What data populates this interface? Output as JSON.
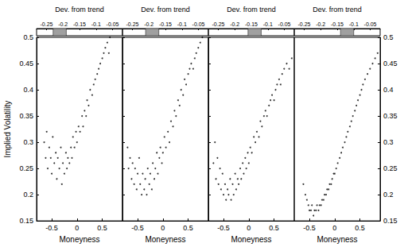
{
  "chart_data": [
    {
      "type": "scatter",
      "color": "#000000",
      "marker": "circle",
      "xlabel": "Moneyness",
      "ylabel": "Implied Volatility",
      "x2label": "Dev. from trend",
      "xlim": [
        -0.8,
        0.9
      ],
      "xticks": [
        -0.5,
        0,
        0.5
      ],
      "ylim": [
        0.15,
        0.5
      ],
      "yticks": [
        0.15,
        0.2,
        0.25,
        0.3,
        0.35,
        0.4,
        0.45,
        0.5
      ],
      "x2lim": [
        -0.28,
        -0.02
      ],
      "x2ticks": [
        -0.25,
        -0.2,
        -0.15,
        -0.1,
        -0.05
      ],
      "band": [
        -0.23,
        -0.19
      ],
      "x": [
        -0.65,
        -0.62,
        -0.6,
        -0.58,
        -0.55,
        -0.52,
        -0.5,
        -0.48,
        -0.45,
        -0.42,
        -0.4,
        -0.38,
        -0.35,
        -0.32,
        -0.3,
        -0.28,
        -0.25,
        -0.22,
        -0.2,
        -0.18,
        -0.15,
        -0.12,
        -0.1,
        -0.08,
        -0.05,
        -0.02,
        0,
        0.03,
        0.06,
        0.1,
        0.12,
        0.15,
        0.18,
        0.2,
        0.23,
        0.26,
        0.3,
        0.33,
        0.36,
        0.4,
        0.43,
        0.46,
        0.5,
        0.53,
        0.56,
        0.6,
        0.63,
        0.65
      ],
      "values": [
        0.3,
        0.27,
        0.32,
        0.25,
        0.29,
        0.27,
        0.24,
        0.31,
        0.26,
        0.28,
        0.23,
        0.27,
        0.25,
        0.29,
        0.22,
        0.26,
        0.24,
        0.28,
        0.25,
        0.27,
        0.26,
        0.29,
        0.27,
        0.31,
        0.29,
        0.32,
        0.3,
        0.33,
        0.32,
        0.35,
        0.33,
        0.36,
        0.35,
        0.38,
        0.37,
        0.4,
        0.39,
        0.41,
        0.42,
        0.43,
        0.44,
        0.45,
        0.46,
        0.47,
        0.48,
        0.49,
        0.47,
        0.5
      ]
    },
    {
      "type": "scatter",
      "color": "#000000",
      "marker": "circle",
      "tick_labels": "x",
      "xlabel": "Moneyness",
      "x2label": "Dev. from trend",
      "xlim": [
        -0.8,
        0.9
      ],
      "xticks": [
        -0.5,
        0,
        0.5
      ],
      "ylim": [
        0.15,
        0.5
      ],
      "yticks": [
        0.15,
        0.2,
        0.25,
        0.3,
        0.35,
        0.4,
        0.45,
        0.5
      ],
      "x2lim": [
        -0.28,
        -0.02
      ],
      "x2ticks": [
        -0.25,
        -0.2,
        -0.15,
        -0.1,
        -0.05
      ],
      "band": [
        -0.21,
        -0.17
      ],
      "x": [
        -0.7,
        -0.68,
        -0.65,
        -0.62,
        -0.6,
        -0.57,
        -0.55,
        -0.52,
        -0.5,
        -0.47,
        -0.45,
        -0.42,
        -0.4,
        -0.37,
        -0.35,
        -0.32,
        -0.3,
        -0.27,
        -0.25,
        -0.22,
        -0.2,
        -0.17,
        -0.15,
        -0.12,
        -0.1,
        -0.07,
        -0.05,
        -0.02,
        0,
        0.03,
        0.06,
        0.1,
        0.13,
        0.16,
        0.2,
        0.23,
        0.26,
        0.3,
        0.33,
        0.36,
        0.4,
        0.43,
        0.46,
        0.5,
        0.53,
        0.56,
        0.6,
        0.63,
        0.66,
        0.7,
        0.74,
        0.78
      ],
      "values": [
        0.29,
        0.25,
        0.27,
        0.23,
        0.26,
        0.22,
        0.25,
        0.21,
        0.24,
        0.27,
        0.22,
        0.2,
        0.24,
        0.21,
        0.23,
        0.2,
        0.25,
        0.22,
        0.24,
        0.21,
        0.26,
        0.23,
        0.25,
        0.28,
        0.24,
        0.27,
        0.29,
        0.26,
        0.28,
        0.31,
        0.29,
        0.32,
        0.3,
        0.34,
        0.33,
        0.36,
        0.35,
        0.38,
        0.37,
        0.4,
        0.39,
        0.42,
        0.41,
        0.43,
        0.44,
        0.45,
        0.44,
        0.46,
        0.47,
        0.48,
        0.49,
        0.5
      ]
    },
    {
      "type": "scatter",
      "color": "#000000",
      "marker": "circle",
      "tick_labels": "x",
      "xlabel": "Moneyness",
      "x2label": "Dev. from trend",
      "xlim": [
        -0.8,
        0.9
      ],
      "xticks": [
        -0.5,
        0,
        0.5
      ],
      "ylim": [
        0.15,
        0.5
      ],
      "yticks": [
        0.15,
        0.2,
        0.25,
        0.3,
        0.35,
        0.4,
        0.45,
        0.5
      ],
      "x2lim": [
        -0.28,
        -0.02
      ],
      "x2ticks": [
        -0.25,
        -0.2,
        -0.15,
        -0.1,
        -0.05
      ],
      "band": [
        -0.16,
        -0.12
      ],
      "x": [
        -0.7,
        -0.67,
        -0.65,
        -0.62,
        -0.6,
        -0.57,
        -0.55,
        -0.52,
        -0.5,
        -0.47,
        -0.45,
        -0.42,
        -0.4,
        -0.37,
        -0.35,
        -0.32,
        -0.3,
        -0.27,
        -0.25,
        -0.22,
        -0.2,
        -0.17,
        -0.15,
        -0.12,
        -0.1,
        -0.07,
        -0.05,
        -0.02,
        0,
        0.03,
        0.06,
        0.1,
        0.13,
        0.16,
        0.2,
        0.23,
        0.26,
        0.3,
        0.33,
        0.36,
        0.4,
        0.43,
        0.46,
        0.5,
        0.53,
        0.56,
        0.6,
        0.63,
        0.66,
        0.7,
        0.75,
        0.8,
        0.85
      ],
      "values": [
        0.26,
        0.3,
        0.23,
        0.27,
        0.22,
        0.25,
        0.21,
        0.24,
        0.2,
        0.22,
        0.19,
        0.21,
        0.2,
        0.23,
        0.19,
        0.22,
        0.2,
        0.24,
        0.21,
        0.23,
        0.22,
        0.25,
        0.23,
        0.26,
        0.24,
        0.27,
        0.25,
        0.28,
        0.26,
        0.29,
        0.28,
        0.31,
        0.3,
        0.32,
        0.31,
        0.34,
        0.33,
        0.35,
        0.36,
        0.35,
        0.37,
        0.38,
        0.39,
        0.38,
        0.4,
        0.41,
        0.42,
        0.41,
        0.43,
        0.44,
        0.45,
        0.44,
        0.46
      ]
    },
    {
      "type": "scatter",
      "color": "#000000",
      "marker": "circle",
      "xlabel": "Moneyness",
      "x2label": "Dev. from trend",
      "xlim": [
        -0.8,
        0.9
      ],
      "xticks": [
        -0.5,
        0,
        0.5
      ],
      "ylim": [
        0.15,
        0.5
      ],
      "yticks": [
        0.15,
        0.2,
        0.25,
        0.3,
        0.35,
        0.4,
        0.45,
        0.5
      ],
      "x2lim": [
        -0.28,
        -0.02
      ],
      "x2ticks": [
        -0.25,
        -0.2,
        -0.15,
        -0.1,
        -0.05
      ],
      "band": [
        -0.14,
        -0.1
      ],
      "x": [
        -0.62,
        -0.58,
        -0.55,
        -0.52,
        -0.5,
        -0.47,
        -0.45,
        -0.42,
        -0.4,
        -0.37,
        -0.35,
        -0.32,
        -0.3,
        -0.27,
        -0.25,
        -0.22,
        -0.2,
        -0.17,
        -0.15,
        -0.12,
        -0.1,
        -0.07,
        -0.05,
        -0.02,
        0,
        0.03,
        0.06,
        0.1,
        0.13,
        0.16,
        0.2,
        0.23,
        0.26,
        0.3,
        0.33,
        0.36,
        0.4,
        0.43,
        0.46,
        0.5,
        0.53,
        0.56,
        0.6,
        0.65,
        0.7,
        0.75,
        0.8,
        0.85
      ],
      "values": [
        0.22,
        0.2,
        0.19,
        0.18,
        0.17,
        0.17,
        0.18,
        0.16,
        0.17,
        0.17,
        0.18,
        0.17,
        0.18,
        0.18,
        0.19,
        0.19,
        0.2,
        0.2,
        0.21,
        0.21,
        0.22,
        0.22,
        0.23,
        0.24,
        0.24,
        0.25,
        0.26,
        0.27,
        0.28,
        0.29,
        0.3,
        0.31,
        0.32,
        0.33,
        0.34,
        0.35,
        0.36,
        0.37,
        0.38,
        0.39,
        0.4,
        0.41,
        0.42,
        0.43,
        0.44,
        0.45,
        0.46,
        0.47
      ]
    }
  ]
}
